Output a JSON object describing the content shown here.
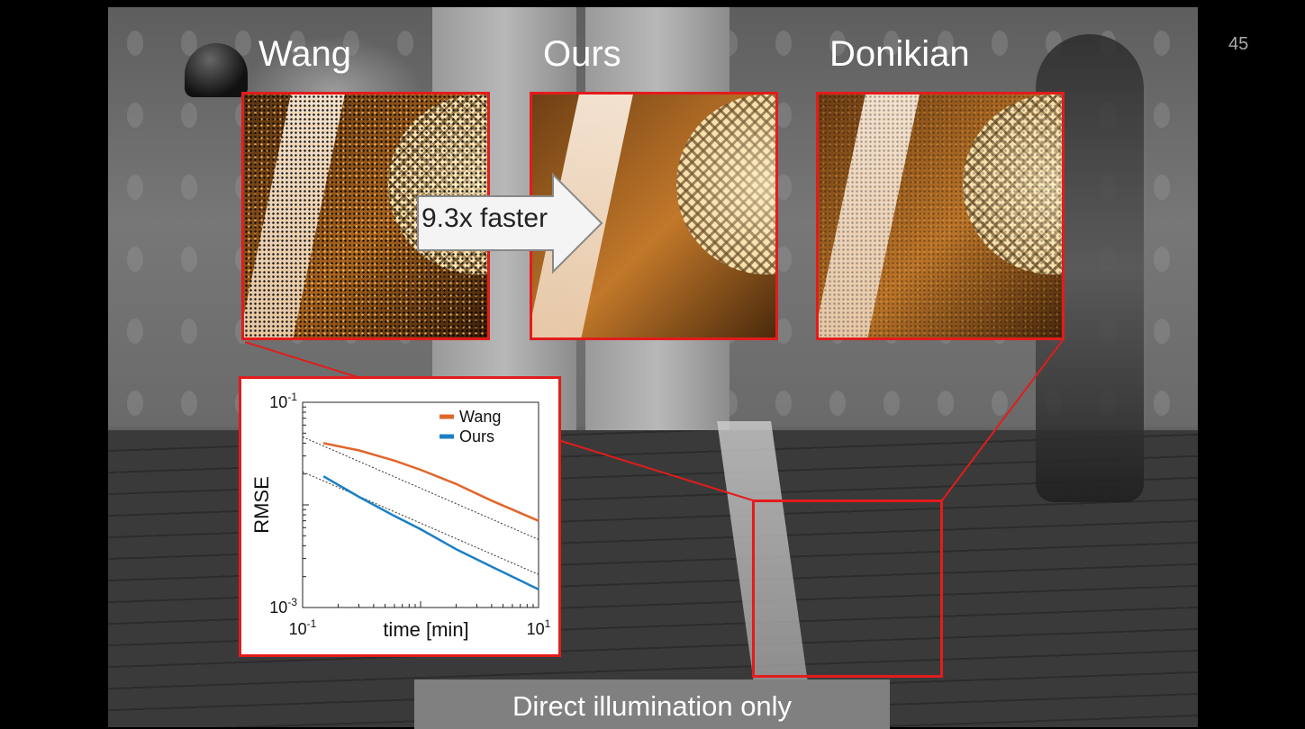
{
  "slide": {
    "number": "45",
    "caption": "Direct illumination only"
  },
  "insets": [
    {
      "label": "Wang"
    },
    {
      "label": "Ours"
    },
    {
      "label": "Donikian"
    }
  ],
  "speedup": {
    "label": "9.3x faster"
  },
  "colors": {
    "highlight_border": "#e21c1c",
    "wang": "#e0662a",
    "ours": "#1b7fc4"
  },
  "chart_data": {
    "type": "line",
    "xlabel": "time [min]",
    "ylabel": "RMSE",
    "x_scale": "log",
    "y_scale": "log",
    "xlim": [
      0.1,
      10
    ],
    "ylim": [
      0.001,
      0.1
    ],
    "x_ticks": [
      {
        "base": "10",
        "exp": "-1",
        "value": 0.1
      },
      {
        "base": "10",
        "exp": "1",
        "value": 10
      }
    ],
    "y_ticks": [
      {
        "base": "10",
        "exp": "-1",
        "value": 0.1
      },
      {
        "base": "10",
        "exp": "-3",
        "value": 0.001
      }
    ],
    "legend_position": "top-right",
    "series": [
      {
        "name": "Wang",
        "color": "#e0662a",
        "x": [
          0.15,
          0.3,
          0.6,
          1,
          2,
          4,
          10
        ],
        "y": [
          0.04,
          0.034,
          0.027,
          0.022,
          0.016,
          0.011,
          0.007
        ]
      },
      {
        "name": "Ours",
        "color": "#1b7fc4",
        "x": [
          0.15,
          0.3,
          0.6,
          1,
          2,
          4,
          10
        ],
        "y": [
          0.019,
          0.012,
          0.0078,
          0.0058,
          0.0037,
          0.0025,
          0.0015
        ]
      }
    ],
    "reference_lines": [
      {
        "x": [
          0.1,
          10
        ],
        "y": [
          0.046,
          0.0046
        ]
      },
      {
        "x": [
          0.1,
          10
        ],
        "y": [
          0.021,
          0.0021
        ]
      }
    ]
  }
}
